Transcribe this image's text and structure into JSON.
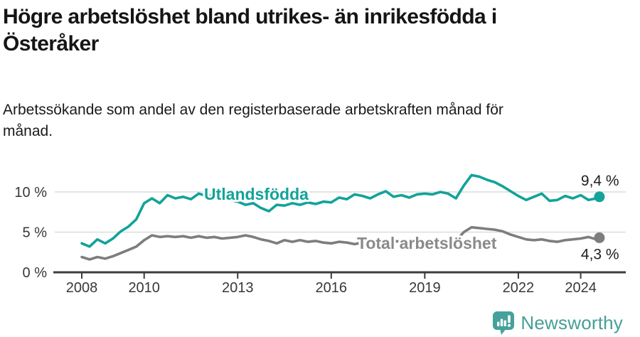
{
  "header": {
    "title_lines": [
      "Högre arbetslöshet bland utrikes- än inrikesfödda i",
      "Österåker"
    ],
    "subtitle_lines": [
      "Arbetssökande som andel av den registerbaserade arbetskraften månad för",
      "månad."
    ]
  },
  "chart_data": {
    "type": "line",
    "xlabel": "",
    "ylabel": "",
    "unit": "%",
    "grid": "horizontal",
    "legend_position": "inline-labels",
    "x_ticks": [
      2008,
      2010,
      2013,
      2016,
      2019,
      2022,
      2024
    ],
    "x_tick_labels": [
      "2008",
      "2010",
      "2013",
      "2016",
      "2019",
      "2022",
      "2024"
    ],
    "y_ticks": [
      0,
      5,
      10
    ],
    "y_tick_labels": [
      "0 %",
      "5 %",
      "10 %"
    ],
    "ylim": [
      0,
      13.5
    ],
    "x": [
      2008,
      2008.25,
      2008.5,
      2008.75,
      2009,
      2009.25,
      2009.5,
      2009.75,
      2010,
      2010.25,
      2010.5,
      2010.75,
      2011,
      2011.25,
      2011.5,
      2011.75,
      2012,
      2012.25,
      2012.5,
      2012.75,
      2013,
      2013.25,
      2013.5,
      2013.75,
      2014,
      2014.25,
      2014.5,
      2014.75,
      2015,
      2015.25,
      2015.5,
      2015.75,
      2016,
      2016.25,
      2016.5,
      2016.75,
      2017,
      2017.25,
      2017.5,
      2017.75,
      2018,
      2018.25,
      2018.5,
      2018.75,
      2019,
      2019.25,
      2019.5,
      2019.75,
      2020,
      2020.25,
      2020.5,
      2020.75,
      2021,
      2021.25,
      2021.5,
      2021.75,
      2022,
      2022.25,
      2022.5,
      2022.75,
      2023,
      2023.25,
      2023.5,
      2023.75,
      2024,
      2024.25,
      2024.5,
      2024.6
    ],
    "series": [
      {
        "name": "Utlandsfödda",
        "color": "#12a399",
        "label_color": "#12a399",
        "end_label": "9,4 %",
        "end_value": 9.4,
        "end_label_position": "above",
        "values": [
          3.6,
          3.2,
          4.1,
          3.6,
          4.2,
          5.1,
          5.7,
          6.6,
          8.6,
          9.2,
          8.6,
          9.6,
          9.2,
          9.4,
          9.1,
          9.8,
          9.5,
          9.7,
          9.4,
          9.0,
          8.8,
          8.4,
          8.6,
          8.0,
          7.6,
          8.4,
          8.3,
          8.6,
          8.4,
          8.7,
          8.5,
          8.8,
          8.7,
          9.3,
          9.1,
          9.7,
          9.5,
          9.2,
          9.7,
          10.1,
          9.4,
          9.6,
          9.3,
          9.7,
          9.8,
          9.7,
          10.0,
          9.8,
          9.2,
          10.8,
          12.1,
          11.9,
          11.5,
          11.2,
          10.7,
          10.1,
          9.5,
          9.0,
          9.4,
          9.8,
          8.9,
          9.0,
          9.5,
          9.2,
          9.6,
          9.0,
          9.2,
          9.4
        ]
      },
      {
        "name": "Total arbetslöshet",
        "color": "#7d7d7d",
        "label_color": "#8a8a8a",
        "end_label": "4,3 %",
        "end_value": 4.3,
        "end_label_position": "below",
        "values": [
          1.9,
          1.6,
          1.9,
          1.7,
          2.0,
          2.4,
          2.8,
          3.2,
          4.0,
          4.6,
          4.4,
          4.5,
          4.4,
          4.5,
          4.3,
          4.5,
          4.3,
          4.4,
          4.2,
          4.3,
          4.4,
          4.6,
          4.4,
          4.1,
          3.9,
          3.6,
          4.0,
          3.8,
          4.0,
          3.8,
          3.9,
          3.7,
          3.6,
          3.8,
          3.7,
          3.5,
          3.7,
          3.8,
          3.9,
          4.0,
          3.9,
          3.8,
          3.7,
          3.8,
          3.7,
          3.6,
          3.7,
          3.8,
          3.9,
          5.0,
          5.6,
          5.5,
          5.4,
          5.3,
          5.1,
          4.7,
          4.4,
          4.1,
          4.0,
          4.1,
          3.9,
          3.8,
          4.0,
          4.1,
          4.2,
          4.4,
          4.1,
          4.3
        ]
      }
    ]
  },
  "colors": {
    "accent_teal": "#12a399",
    "series_gray": "#7d7d7d",
    "axis": "#3c3c3c",
    "gridline": "#dcdcdc",
    "tick_text": "#383838",
    "value_text": "#1f1f1f",
    "logo_teal": "#469e98"
  },
  "branding": {
    "logo_text": "Newsworthy"
  }
}
